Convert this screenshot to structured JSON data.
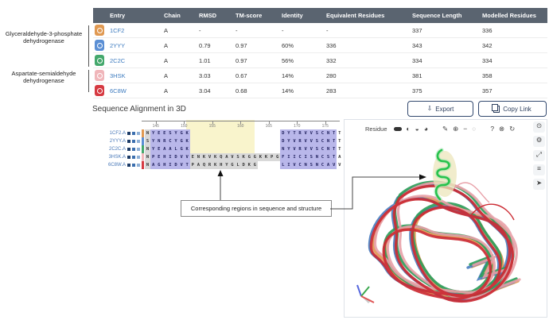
{
  "groups": [
    {
      "label": "Glyceraldehyde-3-phosphate dehydrogenase"
    },
    {
      "label": "Aspartate-semialdehyde dehydrogenase"
    }
  ],
  "table": {
    "columns": [
      "Entry",
      "Chain",
      "RMSD",
      "TM-score",
      "Identity",
      "Equivalent Residues",
      "Sequence Length",
      "Modelled Residues"
    ],
    "rows": [
      {
        "entry": "1CF2",
        "color": "#e09952",
        "chain": "A",
        "rmsd": "-",
        "tm": "-",
        "identity": "-",
        "equiv": "-",
        "seqlen": "337",
        "modelled": "336"
      },
      {
        "entry": "2YYY",
        "color": "#5b8fd4",
        "chain": "A",
        "rmsd": "0.79",
        "tm": "0.97",
        "identity": "60%",
        "equiv": "336",
        "seqlen": "343",
        "modelled": "342"
      },
      {
        "entry": "2C2C",
        "color": "#44a86c",
        "chain": "A",
        "rmsd": "1.01",
        "tm": "0.97",
        "identity": "56%",
        "equiv": "332",
        "seqlen": "334",
        "modelled": "334"
      },
      {
        "entry": "3HSK",
        "color": "#f0b6ba",
        "chain": "A",
        "rmsd": "3.03",
        "tm": "0.67",
        "identity": "14%",
        "equiv": "280",
        "seqlen": "381",
        "modelled": "358"
      },
      {
        "entry": "6C8W",
        "color": "#d63a42",
        "chain": "A",
        "rmsd": "3.04",
        "tm": "0.68",
        "identity": "14%",
        "equiv": "283",
        "seqlen": "375",
        "modelled": "357"
      }
    ]
  },
  "section": {
    "title": "Sequence Alignment in 3D",
    "export_label": "Export",
    "copy_link_label": "Copy Link"
  },
  "alignment": {
    "square_colors": [
      "#1b3a66",
      "#3c6fae",
      "#8fb0d6"
    ],
    "ruler_ticks": [
      {
        "col": 3,
        "label": "145"
      },
      {
        "col": 8,
        "label": "150"
      },
      {
        "col": 13,
        "label": "155"
      },
      {
        "col": 18,
        "label": "160"
      },
      {
        "col": 23,
        "label": "165"
      },
      {
        "col": 28,
        "label": "170"
      },
      {
        "col": 33,
        "label": "175"
      }
    ],
    "rows": [
      {
        "label": "1CF2.A",
        "color": "#e09952",
        "segs": [
          {
            "t": "N",
            "s": "m"
          },
          {
            "t": "YEESYGK",
            "s": "c"
          },
          {
            "gap": 16
          },
          {
            "t": "DYTRVVSCNT",
            "s": "c"
          },
          {
            "t": "T",
            "s": "n"
          }
        ]
      },
      {
        "label": "2YYY.A",
        "color": "#5b8fd4",
        "segs": [
          {
            "t": "S",
            "s": "m"
          },
          {
            "t": "YNRCYGK",
            "s": "c"
          },
          {
            "gap": 16
          },
          {
            "t": "DYVRVVSCNT",
            "s": "c"
          },
          {
            "t": "T",
            "s": "n"
          }
        ]
      },
      {
        "label": "2C2C.A",
        "color": "#44a86c",
        "segs": [
          {
            "t": "N",
            "s": "m"
          },
          {
            "t": "YEAALGK",
            "s": "c"
          },
          {
            "gap": 16
          },
          {
            "t": "NYVRVVSCNT",
            "s": "c"
          },
          {
            "t": "T",
            "s": "n"
          }
        ]
      },
      {
        "label": "3HSK.A",
        "color": "#f0b6ba",
        "segs": [
          {
            "t": "N",
            "s": "m"
          },
          {
            "t": "PEHIDVV",
            "s": "c"
          },
          {
            "t": "ENKVKQAVSKGG",
            "s": "m"
          },
          {
            "t": "KKPG",
            "s": "m"
          },
          {
            "t": "FIICISNCST",
            "s": "c"
          },
          {
            "t": "A",
            "s": "n"
          }
        ]
      },
      {
        "label": "6C8W.A",
        "color": "#d63a42",
        "segs": [
          {
            "t": "N",
            "s": "m"
          },
          {
            "t": "AGHIDVT",
            "s": "c"
          },
          {
            "t": "PAQRKHYGLDKG",
            "s": "m"
          },
          {
            "gap": 4
          },
          {
            "t": "LIVCNSNCAV",
            "s": "c"
          },
          {
            "t": "V",
            "s": "n"
          }
        ]
      }
    ]
  },
  "viewer": {
    "picker_label": "Residue",
    "toolbar_icons": [
      {
        "name": "granularity-pill-icon",
        "glyph": "",
        "pill": true
      },
      {
        "name": "selection-half-icon",
        "glyph": "◐"
      },
      {
        "name": "selection-lower-icon",
        "glyph": "◒"
      },
      {
        "name": "selection-most-icon",
        "glyph": "◕"
      },
      {
        "name": "separator",
        "sep": true
      },
      {
        "name": "brush-icon",
        "glyph": "✎"
      },
      {
        "name": "focus-target-icon",
        "glyph": "⊕"
      },
      {
        "name": "subtract-icon",
        "glyph": "−"
      },
      {
        "name": "empty-circle-icon",
        "glyph": "○",
        "dim": true
      },
      {
        "name": "separator",
        "sep": true
      },
      {
        "name": "help-icon",
        "glyph": "?"
      },
      {
        "name": "close-icon",
        "glyph": "⊗"
      },
      {
        "name": "reset-camera-icon",
        "glyph": "↻"
      }
    ],
    "side_icons": [
      {
        "name": "screenshot-icon",
        "glyph": "⊙"
      },
      {
        "name": "tools-icon",
        "glyph": "⚙"
      },
      {
        "name": "expand-icon",
        "glyph": "⤢"
      },
      {
        "name": "settings-icon",
        "glyph": "≡"
      },
      {
        "name": "selection-cursor-icon",
        "glyph": "➤"
      }
    ],
    "structure_colors": [
      "#e09952",
      "#4a7fc1",
      "#2e9e5b",
      "#e8a0a8",
      "#cc2b33"
    ],
    "highlight_color": "#27c24c"
  },
  "annotation": {
    "text": "Corresponding regions in sequence and structure"
  }
}
